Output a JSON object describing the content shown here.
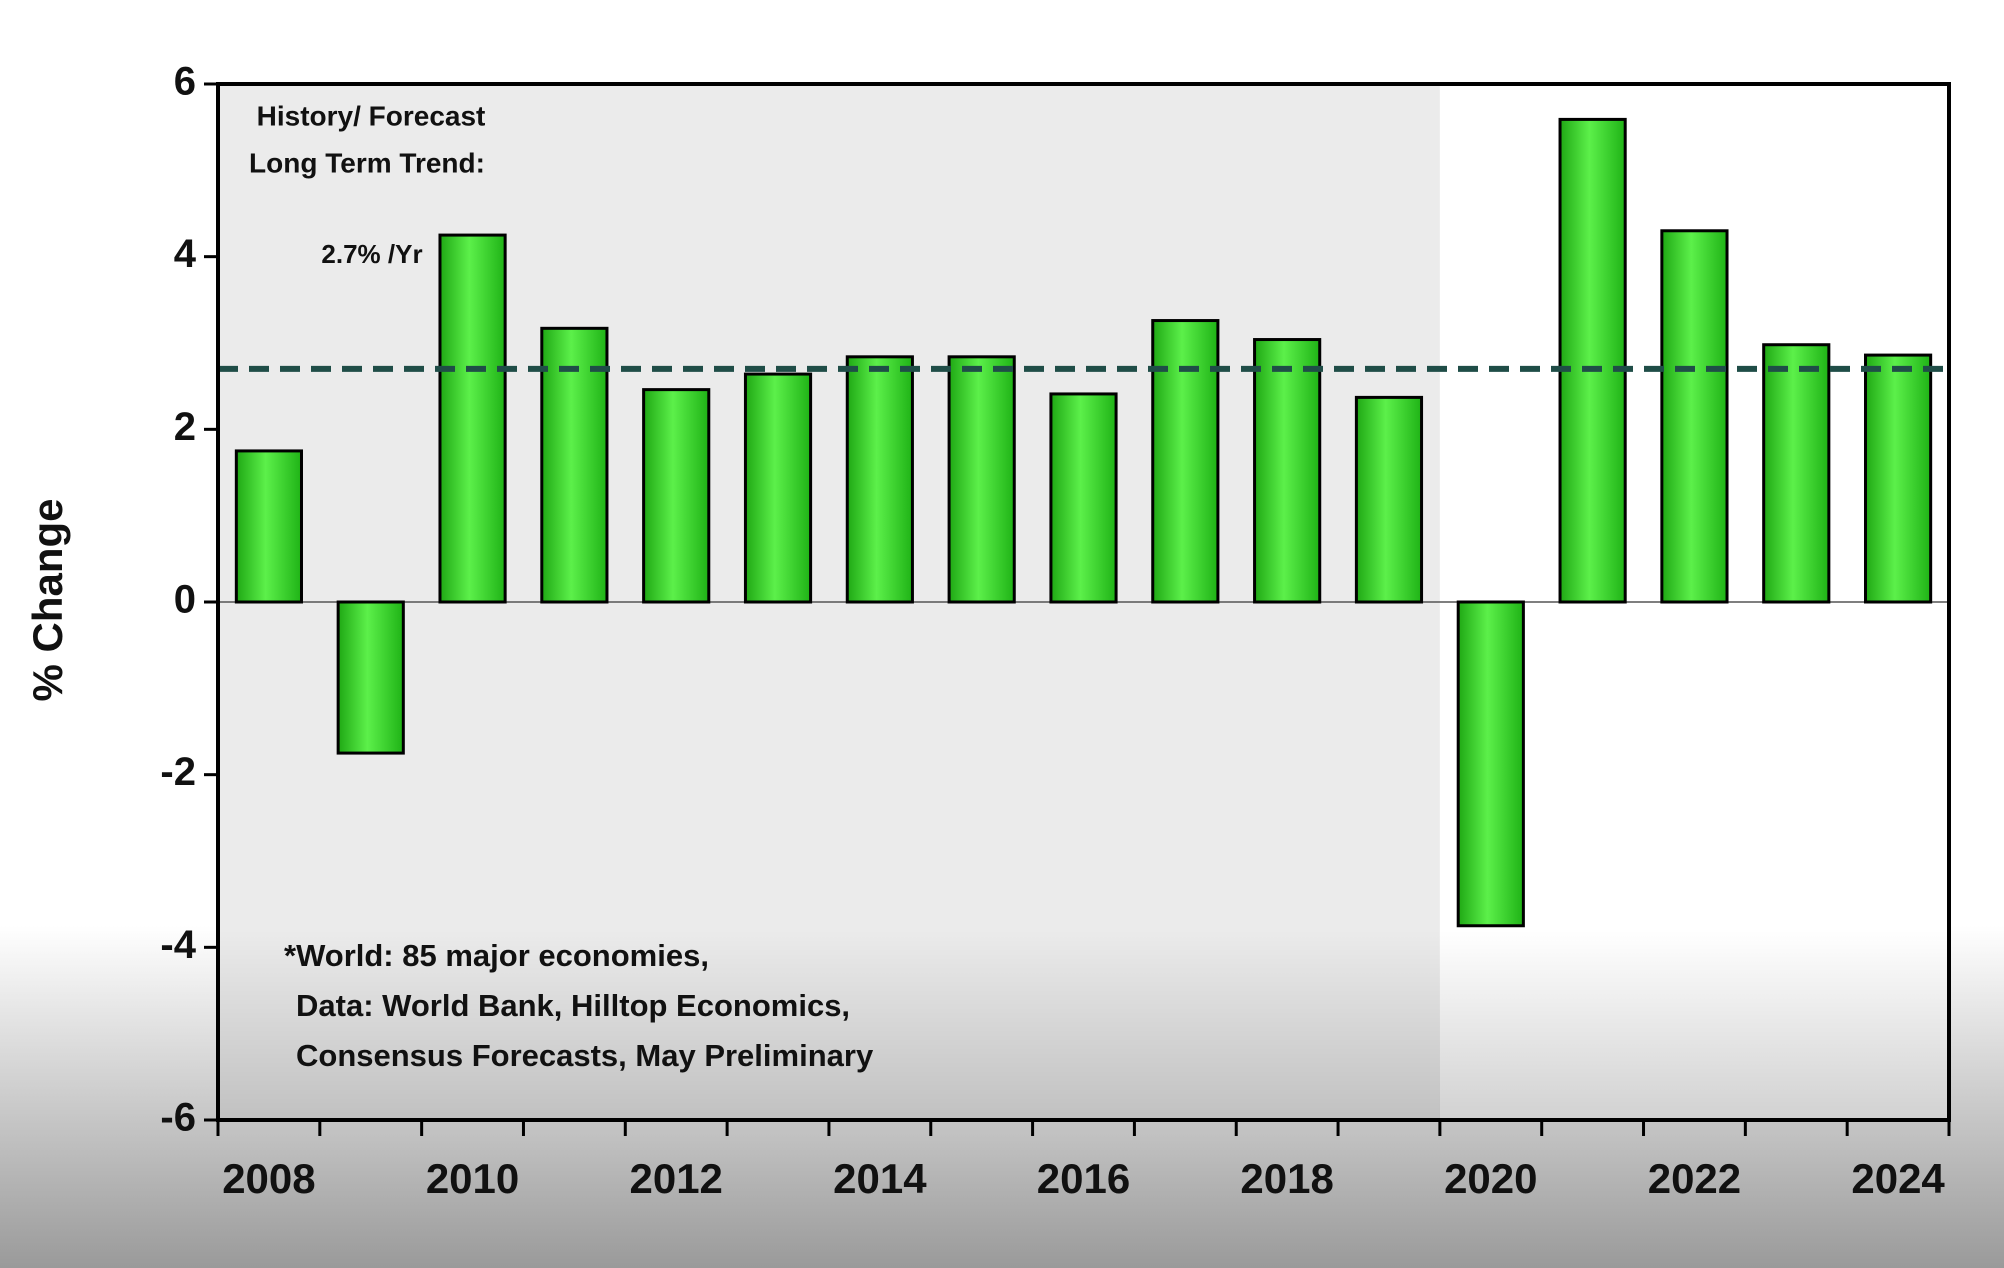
{
  "chart_data": {
    "type": "bar",
    "y_label": "% Change",
    "categories": [
      "2008",
      null,
      "2010",
      null,
      "2012",
      null,
      "2014",
      null,
      "2016",
      null,
      "2018",
      null,
      "2020",
      null,
      "2022",
      null,
      "2024"
    ],
    "values": [
      1.75,
      -1.75,
      4.25,
      3.17,
      2.46,
      2.64,
      2.84,
      2.84,
      2.41,
      3.26,
      3.04,
      2.37,
      -3.75,
      5.59,
      4.3,
      2.98,
      2.86
    ],
    "color": "#2fd21f",
    "ylim": [
      -6,
      6
    ],
    "yticks": [
      -6,
      -4,
      -2,
      0,
      2,
      4,
      6
    ],
    "trend": 2.7,
    "trend_color": "#1f4d47",
    "shaded_until": 12,
    "annotations": [
      "History/ Forecast",
      "Long Term Trend:",
      "2.7% /Yr"
    ],
    "footnote": [
      "*World: 85 major economies,",
      "Data: World Bank, Hilltop Economics,",
      "Consensus Forecasts, May Preliminary"
    ]
  }
}
